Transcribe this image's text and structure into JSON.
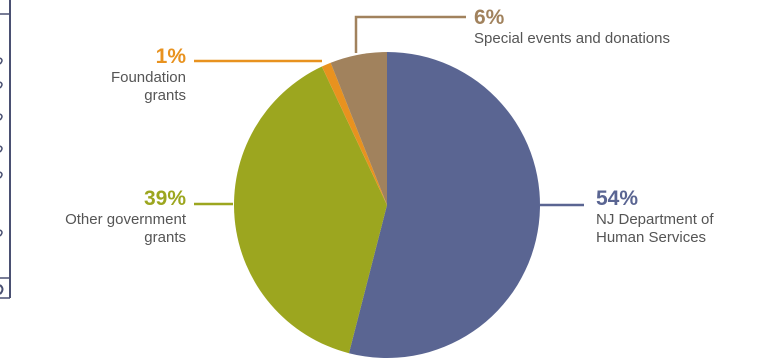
{
  "chart_data": {
    "type": "pie",
    "title": "",
    "start": "12 o'clock, clockwise",
    "slices": [
      {
        "label_lines": [
          "NJ Department of",
          "Human Services"
        ],
        "percent_label": "54%",
        "value": 54,
        "color": "#5a6592"
      },
      {
        "label_lines": [
          "Other government",
          "grants"
        ],
        "percent_label": "39%",
        "value": 39,
        "color": "#9ca61f"
      },
      {
        "label_lines": [
          "Foundation",
          "grants"
        ],
        "percent_label": "1%",
        "value": 1,
        "color": "#e8921f"
      },
      {
        "label_lines": [
          "Special events and donations"
        ],
        "percent_label": "6%",
        "value": 6,
        "color": "#a1825d"
      }
    ]
  },
  "colors": {
    "frame": "#4a5072"
  }
}
